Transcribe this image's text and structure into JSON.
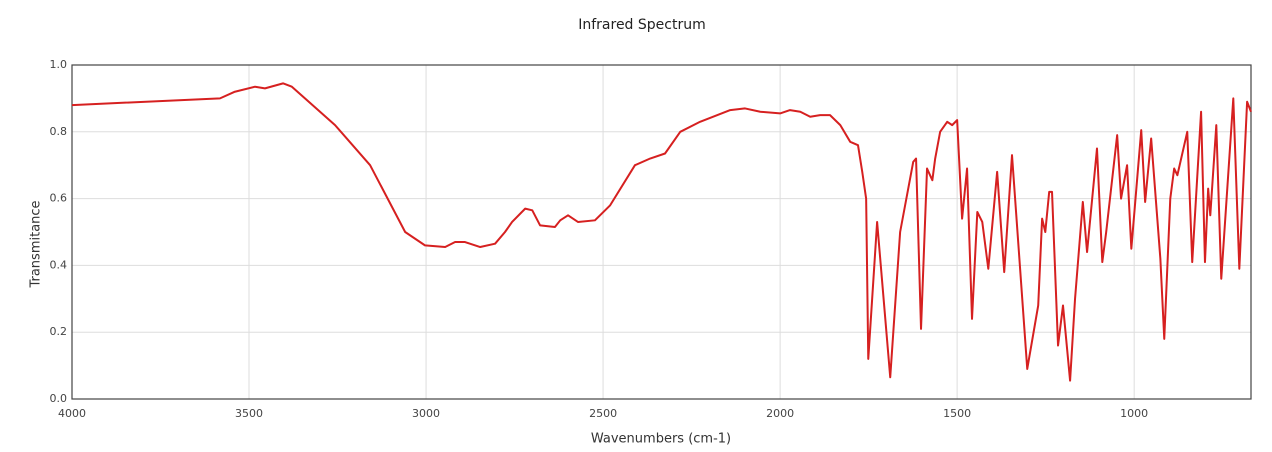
{
  "chart_data": {
    "type": "line",
    "title": "Infrared Spectrum",
    "x_label": "Wavenumbers (cm-1)",
    "y_label": "Transmitance",
    "color": "#d62020",
    "grid": true,
    "xlim": [
      4000,
      670
    ],
    "xticks": [
      4000,
      3500,
      3000,
      2500,
      2000,
      1500,
      1000
    ],
    "ylim": [
      0,
      1
    ],
    "yticks": [
      {
        "value": 0,
        "label": "0.0"
      },
      0.2,
      0.4,
      0.6,
      0.8,
      {
        "value": 1,
        "label": "1.0"
      }
    ],
    "x": [
      4000,
      3582,
      3540,
      3483,
      3455,
      3404,
      3379,
      3342,
      3257,
      3158,
      3059,
      3003,
      2946,
      2918,
      2890,
      2847,
      2805,
      2777,
      2757,
      2720,
      2700,
      2678,
      2636,
      2621,
      2599,
      2571,
      2523,
      2480,
      2410,
      2367,
      2325,
      2282,
      2226,
      2141,
      2099,
      2056,
      2000,
      1972,
      1943,
      1915,
      1887,
      1859,
      1830,
      1802,
      1780,
      1768,
      1757,
      1751,
      1726,
      1689,
      1661,
      1624,
      1616,
      1602,
      1585,
      1570,
      1562,
      1548,
      1528,
      1514,
      1500,
      1486,
      1472,
      1458,
      1443,
      1429,
      1412,
      1387,
      1367,
      1345,
      1302,
      1271,
      1260,
      1251,
      1240,
      1232,
      1215,
      1201,
      1181,
      1167,
      1145,
      1133,
      1105,
      1090,
      1079,
      1048,
      1037,
      1020,
      1008,
      980,
      969,
      952,
      926,
      915,
      898,
      887,
      878,
      850,
      836,
      811,
      800,
      791,
      785,
      768,
      754,
      720,
      703,
      681,
      670
    ],
    "values": [
      0.88,
      0.9,
      0.92,
      0.935,
      0.93,
      0.945,
      0.935,
      0.9,
      0.82,
      0.7,
      0.5,
      0.46,
      0.455,
      0.47,
      0.47,
      0.455,
      0.465,
      0.5,
      0.53,
      0.57,
      0.565,
      0.52,
      0.515,
      0.535,
      0.55,
      0.53,
      0.535,
      0.58,
      0.7,
      0.72,
      0.735,
      0.8,
      0.83,
      0.865,
      0.87,
      0.86,
      0.855,
      0.865,
      0.86,
      0.845,
      0.85,
      0.85,
      0.82,
      0.77,
      0.76,
      0.68,
      0.6,
      0.12,
      0.53,
      0.065,
      0.5,
      0.71,
      0.72,
      0.21,
      0.69,
      0.655,
      0.72,
      0.8,
      0.83,
      0.82,
      0.835,
      0.54,
      0.69,
      0.24,
      0.56,
      0.53,
      0.39,
      0.68,
      0.38,
      0.73,
      0.09,
      0.28,
      0.54,
      0.5,
      0.62,
      0.62,
      0.16,
      0.28,
      0.055,
      0.3,
      0.59,
      0.44,
      0.75,
      0.41,
      0.5,
      0.79,
      0.6,
      0.7,
      0.45,
      0.805,
      0.59,
      0.78,
      0.42,
      0.18,
      0.6,
      0.69,
      0.67,
      0.8,
      0.41,
      0.86,
      0.41,
      0.63,
      0.55,
      0.82,
      0.36,
      0.9,
      0.39,
      0.89,
      0.86
    ]
  }
}
